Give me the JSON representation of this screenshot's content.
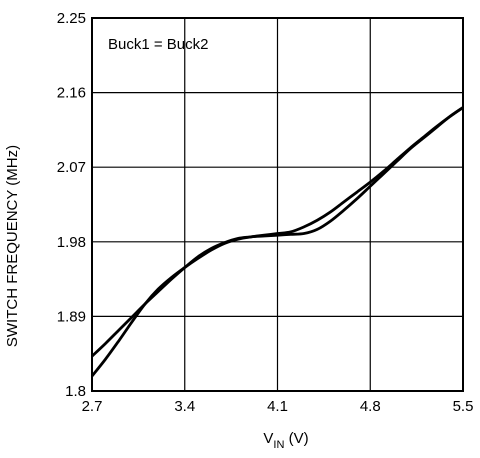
{
  "chart_data": {
    "type": "line",
    "title": "",
    "xlabel": "V",
    "xlabel_sub": "IN",
    "xlabel_unit": " (V)",
    "ylabel": "SWITCH FREQUENCY (MHz)",
    "xlim": [
      2.7,
      5.5
    ],
    "ylim": [
      1.8,
      2.25
    ],
    "x_ticks": [
      2.7,
      3.4,
      4.1,
      4.8,
      5.5
    ],
    "x_tick_labels": [
      "2.7",
      "3.4",
      "4.1",
      "4.8",
      "5.5"
    ],
    "y_ticks": [
      1.8,
      1.89,
      1.98,
      2.07,
      2.16,
      2.25
    ],
    "y_tick_labels": [
      "1.8",
      "1.89",
      "1.98",
      "2.07",
      "2.16",
      "2.25"
    ],
    "grid": true,
    "annotation": "Buck1 = Buck2",
    "series": [
      {
        "color": "#000000",
        "x": [
          2.7,
          2.8,
          2.9,
          3.0,
          3.1,
          3.2,
          3.3,
          3.4,
          3.5,
          3.6,
          3.7,
          3.8,
          3.9,
          4.0,
          4.1,
          4.2,
          4.3,
          4.4,
          4.5,
          4.6,
          4.7,
          4.8,
          4.9,
          5.0,
          5.1,
          5.2,
          5.3,
          5.4,
          5.5
        ],
        "y": [
          1.842,
          1.857,
          1.873,
          1.889,
          1.905,
          1.92,
          1.935,
          1.949,
          1.962,
          1.972,
          1.979,
          1.984,
          1.986,
          1.988,
          1.99,
          1.992,
          1.998,
          2.006,
          2.016,
          2.028,
          2.04,
          2.052,
          2.065,
          2.079,
          2.093,
          2.106,
          2.119,
          2.131,
          2.142
        ]
      },
      {
        "color": "#000000",
        "x": [
          2.7,
          2.8,
          2.9,
          3.0,
          3.1,
          3.2,
          3.3,
          3.4,
          3.5,
          3.6,
          3.7,
          3.8,
          3.9,
          4.0,
          4.1,
          4.2,
          4.3,
          4.4,
          4.5,
          4.6,
          4.7,
          4.8,
          4.9,
          5.0,
          5.1,
          5.2,
          5.3,
          5.4,
          5.5
        ],
        "y": [
          1.818,
          1.838,
          1.86,
          1.883,
          1.905,
          1.923,
          1.937,
          1.949,
          1.96,
          1.97,
          1.978,
          1.983,
          1.986,
          1.987,
          1.988,
          1.989,
          1.99,
          1.995,
          2.005,
          2.018,
          2.032,
          2.047,
          2.062,
          2.077,
          2.092,
          2.105,
          2.118,
          2.131,
          2.142
        ]
      }
    ]
  }
}
